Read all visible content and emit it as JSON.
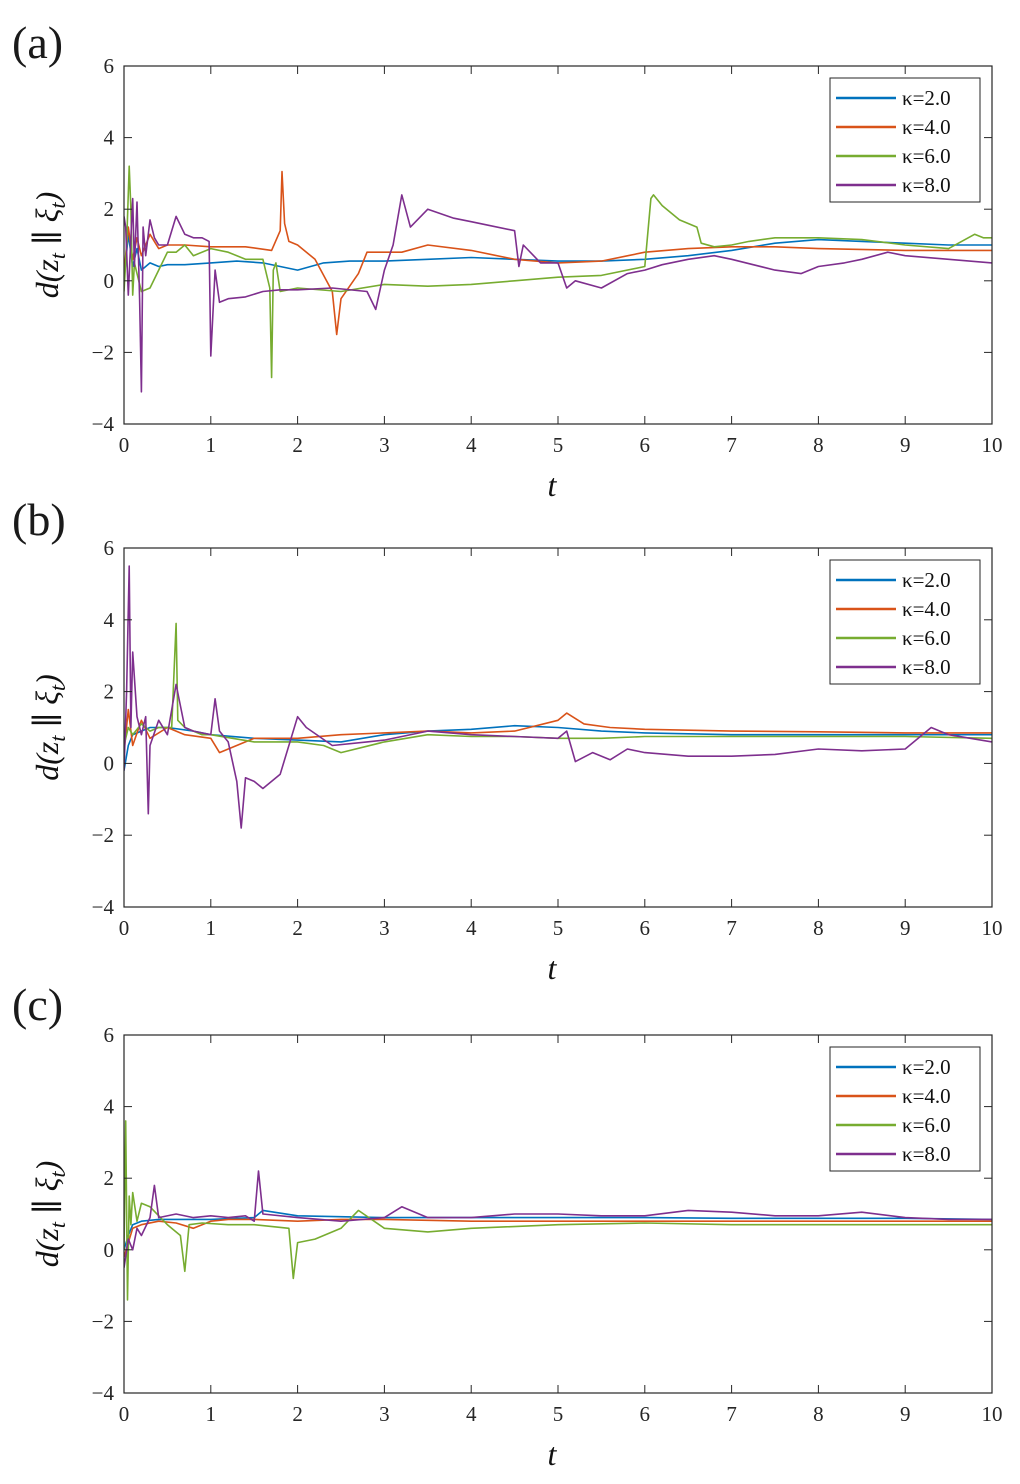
{
  "chart_data": [
    {
      "type": "line",
      "panel_label": "(a)",
      "xlabel": "t",
      "ylabel": "d(z_t ∥ ξ_t)",
      "ylabel_parts": {
        "d": "d",
        "open": "(",
        "z": "z",
        "z_sub": "t",
        "sep": " ∥ ",
        "xi": "ξ",
        "xi_sub": "t",
        "close": ")"
      },
      "xlim": [
        0,
        10
      ],
      "ylim": [
        -4,
        6
      ],
      "xticks": [
        "0",
        "1",
        "2",
        "3",
        "4",
        "5",
        "6",
        "7",
        "8",
        "9",
        "10"
      ],
      "yticks": [
        "−4",
        "−2",
        "0",
        "2",
        "4",
        "6"
      ],
      "legend_position": "top-right",
      "series": [
        {
          "name": "κ=2.0",
          "color": "#0072BD",
          "x": [
            0,
            0.05,
            0.1,
            0.15,
            0.2,
            0.3,
            0.4,
            0.5,
            0.7,
            1.0,
            1.3,
            1.6,
            1.8,
            2.0,
            2.3,
            2.6,
            3.0,
            3.5,
            4.0,
            4.5,
            5.0,
            5.5,
            6.0,
            6.5,
            7.0,
            7.5,
            8.0,
            8.5,
            9.0,
            9.5,
            10.0
          ],
          "y": [
            0,
            1.3,
            0.4,
            0.9,
            0.3,
            0.5,
            0.4,
            0.45,
            0.45,
            0.5,
            0.55,
            0.5,
            0.4,
            0.3,
            0.5,
            0.55,
            0.55,
            0.6,
            0.65,
            0.6,
            0.55,
            0.55,
            0.6,
            0.7,
            0.85,
            1.05,
            1.15,
            1.1,
            1.05,
            1.0,
            1.0
          ]
        },
        {
          "name": "κ=4.0",
          "color": "#D95319",
          "x": [
            0,
            0.05,
            0.1,
            0.15,
            0.2,
            0.3,
            0.4,
            0.5,
            0.7,
            1.0,
            1.4,
            1.7,
            1.8,
            1.82,
            1.85,
            1.9,
            2.0,
            2.2,
            2.4,
            2.45,
            2.5,
            2.7,
            2.8,
            3.0,
            3.2,
            3.5,
            4.0,
            4.5,
            5.0,
            5.5,
            6.0,
            6.5,
            7.0,
            7.5,
            8.0,
            9.0,
            10.0
          ],
          "y": [
            0.2,
            1.5,
            0.6,
            1.2,
            0.7,
            1.3,
            0.9,
            1.0,
            1.0,
            0.95,
            0.95,
            0.85,
            1.4,
            3.05,
            1.6,
            1.1,
            1.0,
            0.6,
            -0.3,
            -1.5,
            -0.5,
            0.2,
            0.8,
            0.8,
            0.8,
            1.0,
            0.85,
            0.6,
            0.5,
            0.55,
            0.8,
            0.9,
            0.95,
            0.95,
            0.9,
            0.85,
            0.85
          ]
        },
        {
          "name": "κ=6.0",
          "color": "#77AC30",
          "x": [
            0,
            0.03,
            0.06,
            0.08,
            0.1,
            0.12,
            0.2,
            0.3,
            0.4,
            0.5,
            0.6,
            0.7,
            0.8,
            1.0,
            1.2,
            1.4,
            1.6,
            1.68,
            1.7,
            1.72,
            1.75,
            1.8,
            2.0,
            2.5,
            3.0,
            3.5,
            4.0,
            4.5,
            5.0,
            5.5,
            6.0,
            6.07,
            6.1,
            6.2,
            6.4,
            6.6,
            6.65,
            6.8,
            7.0,
            7.2,
            7.5,
            8.0,
            8.5,
            9.0,
            9.5,
            9.8,
            9.9,
            10.0
          ],
          "y": [
            -0.3,
            1.0,
            3.2,
            2.0,
            -0.4,
            0.5,
            -0.3,
            -0.2,
            0.3,
            0.8,
            0.8,
            1.0,
            0.7,
            0.9,
            0.8,
            0.6,
            0.6,
            -0.2,
            -2.7,
            0.3,
            0.5,
            -0.3,
            -0.2,
            -0.3,
            -0.1,
            -0.15,
            -0.1,
            0.0,
            0.1,
            0.15,
            0.4,
            2.3,
            2.4,
            2.1,
            1.7,
            1.5,
            1.05,
            0.95,
            1.0,
            1.1,
            1.2,
            1.2,
            1.15,
            1.0,
            0.9,
            1.3,
            1.2,
            1.2
          ]
        },
        {
          "name": "κ=8.0",
          "color": "#7E2F8E",
          "x": [
            0,
            0.02,
            0.05,
            0.08,
            0.1,
            0.12,
            0.15,
            0.18,
            0.2,
            0.22,
            0.25,
            0.3,
            0.35,
            0.4,
            0.5,
            0.6,
            0.7,
            0.8,
            0.9,
            0.98,
            1.0,
            1.05,
            1.1,
            1.2,
            1.4,
            1.6,
            1.8,
            2.0,
            2.4,
            2.8,
            2.9,
            3.0,
            3.1,
            3.2,
            3.3,
            3.5,
            3.8,
            4.0,
            4.2,
            4.5,
            4.55,
            4.6,
            4.8,
            5.0,
            5.1,
            5.2,
            5.5,
            5.8,
            6.0,
            6.2,
            6.5,
            6.8,
            7.0,
            7.5,
            7.8,
            8.0,
            8.3,
            8.5,
            8.8,
            9.0,
            9.5,
            10.0
          ],
          "y": [
            1.8,
            1.5,
            -0.4,
            1.2,
            2.3,
            0.4,
            2.2,
            -0.5,
            -3.1,
            1.5,
            0.7,
            1.7,
            1.2,
            1.0,
            1.0,
            1.8,
            1.3,
            1.2,
            1.2,
            1.1,
            -2.1,
            0.3,
            -0.6,
            -0.5,
            -0.45,
            -0.3,
            -0.25,
            -0.25,
            -0.2,
            -0.3,
            -0.8,
            0.3,
            1.0,
            2.4,
            1.5,
            2.0,
            1.75,
            1.65,
            1.55,
            1.4,
            0.4,
            1.0,
            0.5,
            0.5,
            -0.2,
            0.0,
            -0.2,
            0.2,
            0.3,
            0.45,
            0.6,
            0.7,
            0.6,
            0.3,
            0.2,
            0.4,
            0.5,
            0.6,
            0.8,
            0.7,
            0.6,
            0.5
          ]
        }
      ]
    },
    {
      "type": "line",
      "panel_label": "(b)",
      "xlabel": "t",
      "ylabel": "d(z_t ∥ ξ_t)",
      "ylabel_parts": {
        "d": "d",
        "open": "(",
        "z": "z",
        "z_sub": "t",
        "sep": " ∥ ",
        "xi": "ξ",
        "xi_sub": "t",
        "close": ")"
      },
      "xlim": [
        0,
        10
      ],
      "ylim": [
        -4,
        6
      ],
      "xticks": [
        "0",
        "1",
        "2",
        "3",
        "4",
        "5",
        "6",
        "7",
        "8",
        "9",
        "10"
      ],
      "yticks": [
        "−4",
        "−2",
        "0",
        "2",
        "4",
        "6"
      ],
      "legend_position": "top-right",
      "series": [
        {
          "name": "κ=2.0",
          "color": "#0072BD",
          "x": [
            0,
            0.05,
            0.1,
            0.2,
            0.3,
            0.5,
            0.8,
            1.0,
            1.5,
            2.0,
            2.5,
            3.0,
            3.5,
            4.0,
            4.5,
            5.0,
            5.5,
            6.0,
            7.0,
            8.0,
            9.0,
            10.0
          ],
          "y": [
            -0.2,
            0.5,
            0.8,
            0.9,
            1.0,
            1.0,
            0.9,
            0.8,
            0.7,
            0.65,
            0.6,
            0.8,
            0.9,
            0.95,
            1.05,
            1.0,
            0.9,
            0.85,
            0.8,
            0.8,
            0.8,
            0.8
          ]
        },
        {
          "name": "κ=4.0",
          "color": "#D95319",
          "x": [
            0,
            0.05,
            0.1,
            0.2,
            0.3,
            0.5,
            0.7,
            1.0,
            1.1,
            1.5,
            2.0,
            2.5,
            3.0,
            3.5,
            4.0,
            4.5,
            5.0,
            5.1,
            5.3,
            5.6,
            6.0,
            7.0,
            8.0,
            9.0,
            10.0
          ],
          "y": [
            0.3,
            1.5,
            0.5,
            1.2,
            0.7,
            1.0,
            0.8,
            0.7,
            0.3,
            0.7,
            0.7,
            0.8,
            0.85,
            0.9,
            0.85,
            0.9,
            1.2,
            1.4,
            1.1,
            1.0,
            0.95,
            0.9,
            0.88,
            0.85,
            0.85
          ]
        },
        {
          "name": "κ=6.0",
          "color": "#77AC30",
          "x": [
            0,
            0.05,
            0.1,
            0.2,
            0.3,
            0.4,
            0.55,
            0.6,
            0.62,
            0.7,
            0.9,
            1.0,
            1.5,
            2.0,
            2.3,
            2.5,
            3.0,
            3.5,
            4.0,
            4.5,
            5.0,
            5.5,
            6.0,
            7.0,
            8.0,
            9.0,
            10.0
          ],
          "y": [
            0.5,
            1.0,
            0.8,
            1.1,
            0.9,
            1.0,
            1.0,
            3.9,
            1.2,
            1.0,
            0.8,
            0.8,
            0.6,
            0.6,
            0.5,
            0.3,
            0.6,
            0.8,
            0.75,
            0.75,
            0.7,
            0.7,
            0.75,
            0.75,
            0.75,
            0.75,
            0.7
          ]
        },
        {
          "name": "κ=8.0",
          "color": "#7E2F8E",
          "x": [
            0,
            0.03,
            0.06,
            0.08,
            0.1,
            0.15,
            0.2,
            0.25,
            0.28,
            0.3,
            0.4,
            0.5,
            0.6,
            0.7,
            0.8,
            1.0,
            1.05,
            1.1,
            1.2,
            1.3,
            1.35,
            1.4,
            1.5,
            1.6,
            1.8,
            2.0,
            2.1,
            2.4,
            2.8,
            3.0,
            3.5,
            4.0,
            4.5,
            5.0,
            5.1,
            5.2,
            5.4,
            5.6,
            5.8,
            6.0,
            6.5,
            7.0,
            7.5,
            8.0,
            8.5,
            9.0,
            9.3,
            9.5,
            10.0
          ],
          "y": [
            -0.2,
            2.0,
            5.5,
            1.0,
            3.1,
            1.3,
            0.8,
            1.3,
            -1.4,
            0.5,
            1.2,
            0.8,
            2.2,
            1.0,
            0.9,
            0.8,
            1.8,
            0.9,
            0.6,
            -0.5,
            -1.8,
            -0.4,
            -0.5,
            -0.7,
            -0.3,
            1.3,
            1.0,
            0.5,
            0.6,
            0.65,
            0.9,
            0.8,
            0.75,
            0.7,
            0.9,
            0.05,
            0.3,
            0.1,
            0.4,
            0.3,
            0.2,
            0.2,
            0.25,
            0.4,
            0.35,
            0.4,
            1.0,
            0.8,
            0.6
          ]
        }
      ]
    },
    {
      "type": "line",
      "panel_label": "(c)",
      "xlabel": "t",
      "ylabel": "d(z_t ∥ ξ_t)",
      "ylabel_parts": {
        "d": "d",
        "open": "(",
        "z": "z",
        "z_sub": "t",
        "sep": " ∥ ",
        "xi": "ξ",
        "xi_sub": "t",
        "close": ")"
      },
      "xlim": [
        0,
        10
      ],
      "ylim": [
        -4,
        6
      ],
      "xticks": [
        "0",
        "1",
        "2",
        "3",
        "4",
        "5",
        "6",
        "7",
        "8",
        "9",
        "10"
      ],
      "yticks": [
        "−4",
        "−2",
        "0",
        "2",
        "4",
        "6"
      ],
      "legend_position": "top-right",
      "series": [
        {
          "name": "κ=2.0",
          "color": "#0072BD",
          "x": [
            0,
            0.05,
            0.1,
            0.2,
            0.4,
            0.6,
            1.0,
            1.5,
            1.6,
            2.0,
            3.0,
            4.0,
            5.0,
            6.0,
            7.0,
            8.0,
            9.0,
            10.0
          ],
          "y": [
            0,
            0.4,
            0.7,
            0.8,
            0.85,
            0.85,
            0.85,
            0.9,
            1.1,
            0.95,
            0.9,
            0.9,
            0.9,
            0.9,
            0.88,
            0.88,
            0.88,
            0.85
          ]
        },
        {
          "name": "κ=4.0",
          "color": "#D95319",
          "x": [
            0,
            0.05,
            0.1,
            0.2,
            0.4,
            0.6,
            0.8,
            1.0,
            1.2,
            1.5,
            2.0,
            2.5,
            3.0,
            4.0,
            5.0,
            6.0,
            7.0,
            8.0,
            9.0,
            10.0
          ],
          "y": [
            -0.2,
            0.2,
            0.6,
            0.7,
            0.8,
            0.75,
            0.6,
            0.8,
            0.85,
            0.85,
            0.8,
            0.85,
            0.85,
            0.8,
            0.8,
            0.8,
            0.8,
            0.8,
            0.8,
            0.8
          ]
        },
        {
          "name": "κ=6.0",
          "color": "#77AC30",
          "x": [
            0,
            0.02,
            0.04,
            0.06,
            0.08,
            0.1,
            0.15,
            0.2,
            0.3,
            0.5,
            0.65,
            0.7,
            0.75,
            0.9,
            1.2,
            1.5,
            1.9,
            1.95,
            2.0,
            2.2,
            2.5,
            2.7,
            3.0,
            3.5,
            4.0,
            5.0,
            6.0,
            7.0,
            8.0,
            9.0,
            10.0
          ],
          "y": [
            0.0,
            3.6,
            -1.4,
            1.5,
            0.7,
            1.6,
            0.8,
            1.3,
            1.2,
            0.7,
            0.4,
            -0.6,
            0.7,
            0.75,
            0.7,
            0.7,
            0.6,
            -0.8,
            0.2,
            0.3,
            0.6,
            1.1,
            0.6,
            0.5,
            0.6,
            0.7,
            0.75,
            0.7,
            0.7,
            0.7,
            0.7
          ]
        },
        {
          "name": "κ=8.0",
          "color": "#7E2F8E",
          "x": [
            0,
            0.05,
            0.1,
            0.15,
            0.2,
            0.3,
            0.35,
            0.4,
            0.6,
            0.8,
            1.0,
            1.2,
            1.4,
            1.5,
            1.55,
            1.6,
            2.0,
            2.5,
            3.0,
            3.2,
            3.5,
            4.0,
            4.5,
            5.0,
            5.5,
            6.0,
            6.5,
            7.0,
            7.5,
            8.0,
            8.5,
            9.0,
            9.5,
            10.0
          ],
          "y": [
            -0.5,
            0.3,
            0.0,
            0.6,
            0.4,
            0.9,
            1.8,
            0.9,
            1.0,
            0.9,
            0.95,
            0.9,
            0.95,
            0.8,
            2.2,
            1.0,
            0.9,
            0.8,
            0.9,
            1.2,
            0.9,
            0.9,
            1.0,
            1.0,
            0.95,
            0.95,
            1.1,
            1.05,
            0.95,
            0.95,
            1.05,
            0.9,
            0.85,
            0.85
          ]
        }
      ]
    }
  ]
}
